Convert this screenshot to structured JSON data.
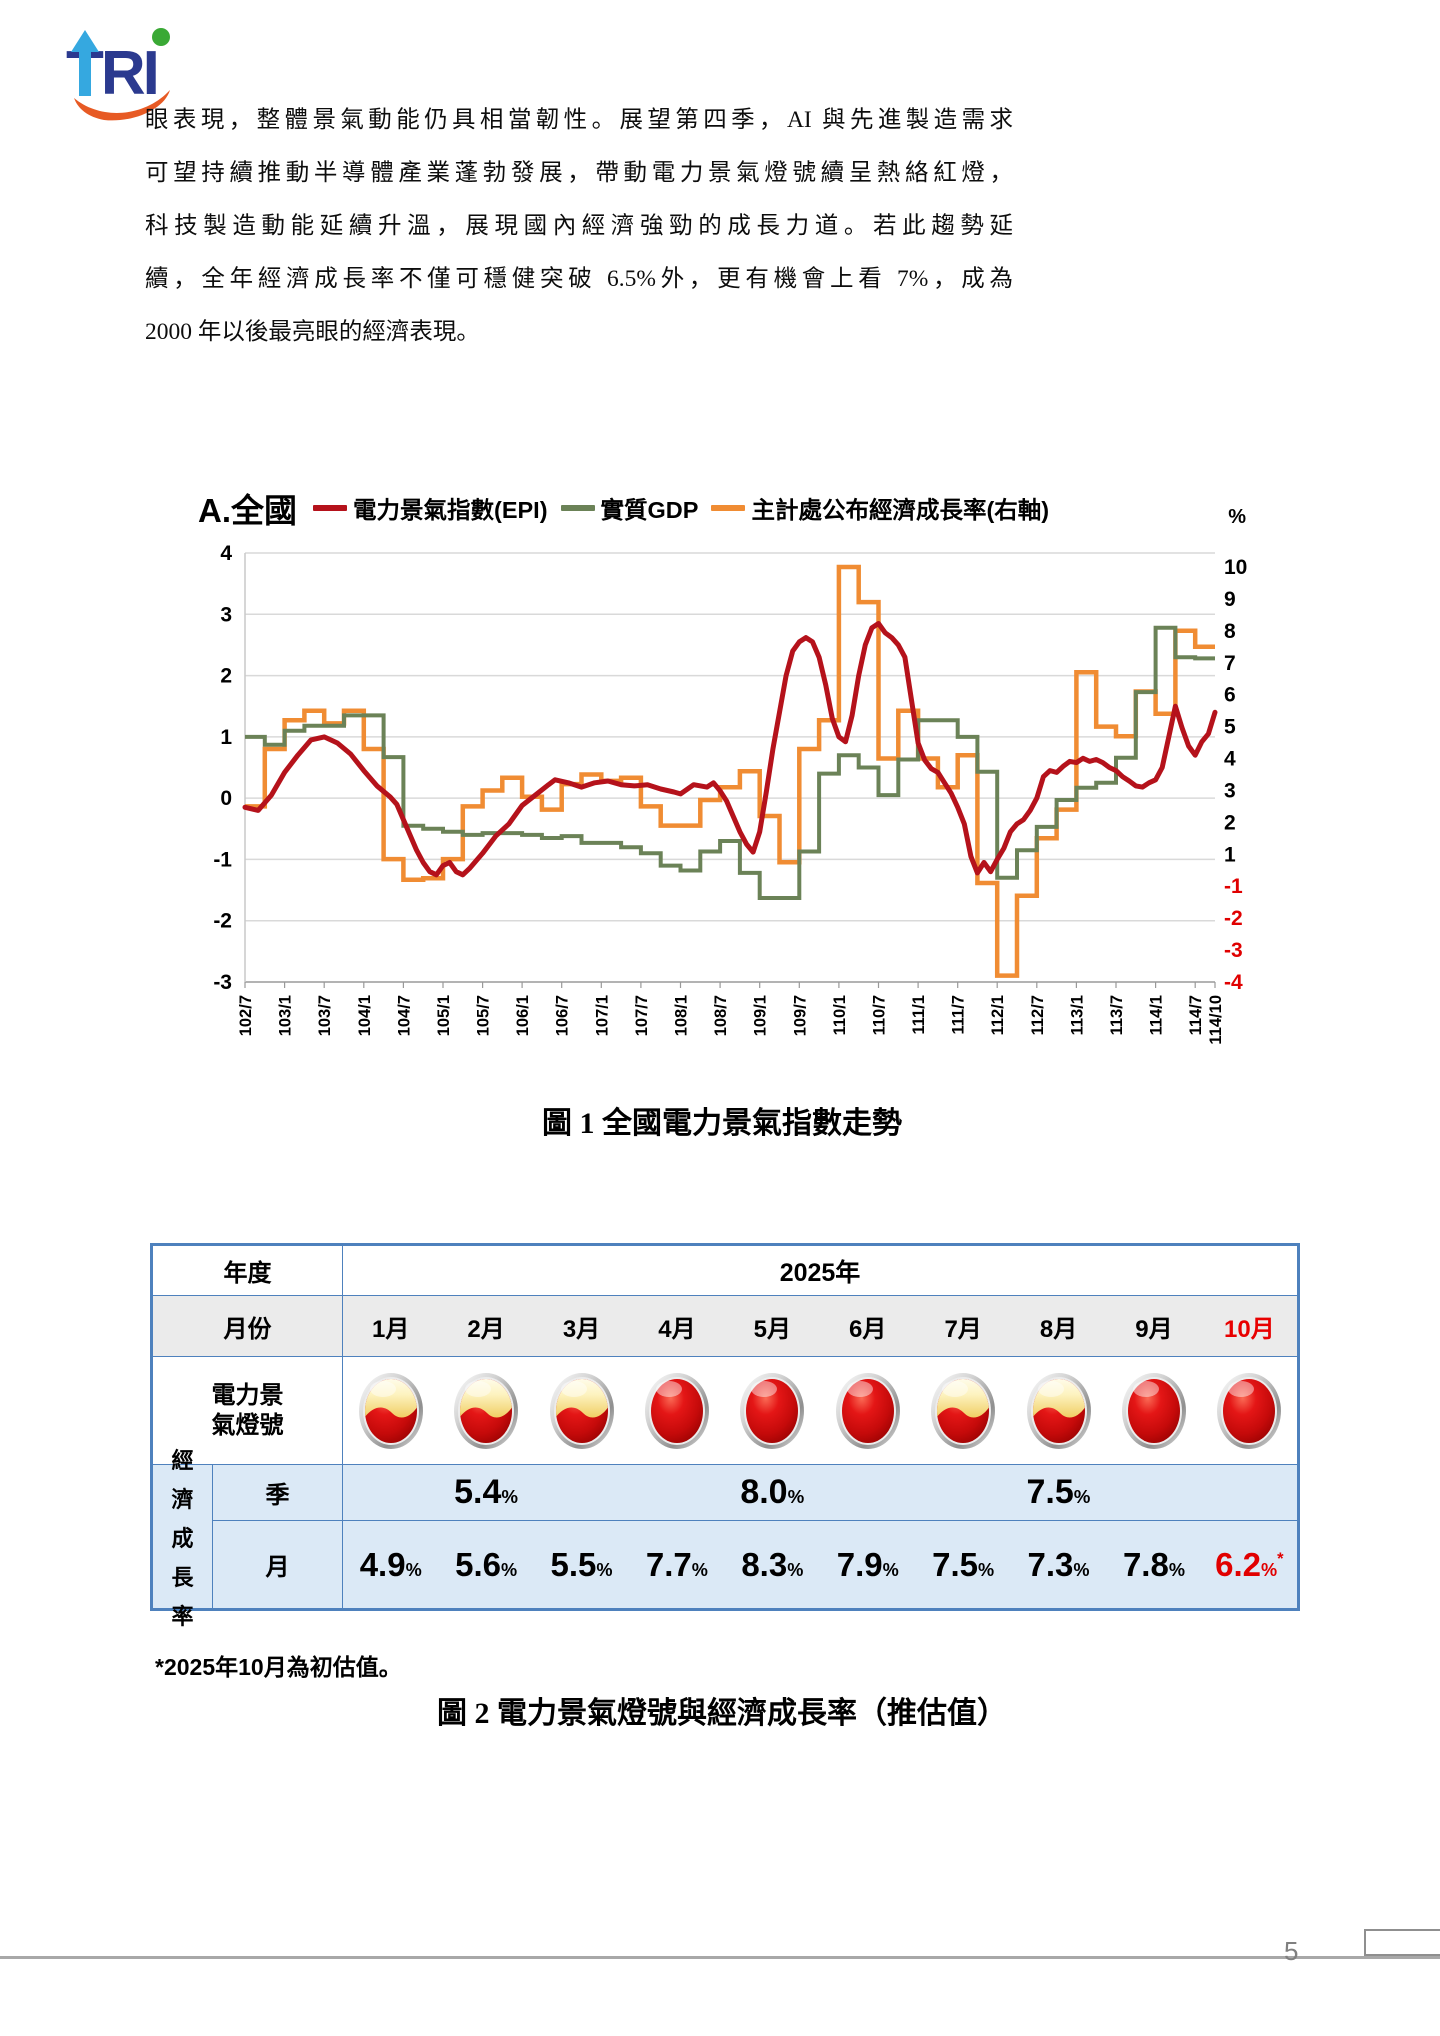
{
  "page": {
    "number": "5"
  },
  "logo": {
    "text": "TRI"
  },
  "paragraph": {
    "lines": [
      "眼表現，整體景氣動能仍具相當韌性。展望第四季，AI 與先進製造需求",
      "可望持續推動半導體產業蓬勃發展，帶動電力景氣燈號續呈熱絡紅燈，",
      "科技製造動能延續升溫，展現國內經濟強勁的成長力道。若此趨勢延",
      "續，全年經濟成長率不僅可穩健突破 6.5%外，更有機會上看 7%，成為",
      "2000 年以後最亮眼的經濟表現。"
    ]
  },
  "figure1": {
    "section_label": "A.全國",
    "legend": [
      {
        "label": "電力景氣指數(EPI)",
        "color": "#b5121b"
      },
      {
        "label": "實質GDP",
        "color": "#6b8257"
      },
      {
        "label": "主計處公布經濟成長率(右軸)",
        "color": "#f08c33"
      }
    ],
    "right_axis_unit": "%",
    "caption": "圖 1  全國電力景氣指數走勢",
    "chart_data": {
      "type": "line",
      "title": "A.全國 電力景氣指數走勢",
      "x_start": "102/7",
      "x_end": "114/10",
      "x_tick_labels": [
        "102/7",
        "103/1",
        "103/7",
        "104/1",
        "104/7",
        "105/1",
        "105/7",
        "106/1",
        "106/7",
        "107/1",
        "107/7",
        "108/1",
        "108/7",
        "109/1",
        "109/7",
        "110/1",
        "110/7",
        "111/1",
        "111/7",
        "112/1",
        "112/7",
        "113/1",
        "113/7",
        "114/1",
        "114/7",
        "114/10"
      ],
      "x_tick_months": [
        0,
        6,
        12,
        18,
        24,
        30,
        36,
        42,
        48,
        54,
        60,
        66,
        72,
        78,
        84,
        90,
        96,
        102,
        108,
        114,
        120,
        126,
        132,
        138,
        144,
        147
      ],
      "left_axis": {
        "min": -3,
        "max": 4,
        "ticks": [
          4,
          3,
          2,
          1,
          0,
          -1,
          -2,
          -3
        ]
      },
      "right_axis": {
        "unit": "%",
        "ticks": [
          10,
          9,
          8,
          7,
          6,
          5,
          4,
          3,
          2,
          1,
          -1,
          -2,
          -3,
          -4
        ],
        "negative_color": "#e00000"
      },
      "grid": true,
      "legend_position": "top",
      "series": [
        {
          "name": "電力景氣指數(EPI)",
          "axis": "left",
          "color": "#b5121b",
          "kind": "monthly",
          "points": [
            [
              0,
              -0.15
            ],
            [
              2,
              -0.2
            ],
            [
              4,
              0.05
            ],
            [
              6,
              0.42
            ],
            [
              8,
              0.7
            ],
            [
              10,
              0.95
            ],
            [
              12,
              1.0
            ],
            [
              14,
              0.9
            ],
            [
              16,
              0.72
            ],
            [
              18,
              0.45
            ],
            [
              20,
              0.2
            ],
            [
              22,
              0.02
            ],
            [
              23,
              -0.1
            ],
            [
              24,
              -0.35
            ],
            [
              26,
              -0.85
            ],
            [
              27,
              -1.05
            ],
            [
              28,
              -1.2
            ],
            [
              29,
              -1.25
            ],
            [
              30,
              -1.1
            ],
            [
              31,
              -1.05
            ],
            [
              32,
              -1.2
            ],
            [
              33,
              -1.25
            ],
            [
              34,
              -1.15
            ],
            [
              36,
              -0.9
            ],
            [
              38,
              -0.62
            ],
            [
              40,
              -0.42
            ],
            [
              42,
              -0.12
            ],
            [
              44,
              0.05
            ],
            [
              46,
              0.22
            ],
            [
              47,
              0.3
            ],
            [
              49,
              0.25
            ],
            [
              51,
              0.18
            ],
            [
              53,
              0.25
            ],
            [
              55,
              0.28
            ],
            [
              57,
              0.22
            ],
            [
              59,
              0.2
            ],
            [
              61,
              0.22
            ],
            [
              63,
              0.15
            ],
            [
              65,
              0.1
            ],
            [
              66,
              0.07
            ],
            [
              68,
              0.22
            ],
            [
              70,
              0.18
            ],
            [
              71,
              0.25
            ],
            [
              72,
              0.12
            ],
            [
              73,
              -0.05
            ],
            [
              74,
              -0.3
            ],
            [
              75,
              -0.55
            ],
            [
              76,
              -0.75
            ],
            [
              77,
              -0.88
            ],
            [
              78,
              -0.55
            ],
            [
              79,
              0.1
            ],
            [
              80,
              0.8
            ],
            [
              81,
              1.4
            ],
            [
              82,
              2.0
            ],
            [
              83,
              2.4
            ],
            [
              84,
              2.55
            ],
            [
              85,
              2.62
            ],
            [
              86,
              2.55
            ],
            [
              87,
              2.3
            ],
            [
              88,
              1.85
            ],
            [
              89,
              1.3
            ],
            [
              90,
              1.0
            ],
            [
              91,
              0.92
            ],
            [
              92,
              1.35
            ],
            [
              93,
              2.0
            ],
            [
              94,
              2.5
            ],
            [
              95,
              2.78
            ],
            [
              96,
              2.85
            ],
            [
              97,
              2.7
            ],
            [
              98,
              2.62
            ],
            [
              99,
              2.5
            ],
            [
              100,
              2.3
            ],
            [
              101,
              1.6
            ],
            [
              102,
              0.9
            ],
            [
              103,
              0.62
            ],
            [
              104,
              0.48
            ],
            [
              105,
              0.42
            ],
            [
              106,
              0.25
            ],
            [
              107,
              0.08
            ],
            [
              108,
              -0.15
            ],
            [
              109,
              -0.42
            ],
            [
              110,
              -0.95
            ],
            [
              111,
              -1.22
            ],
            [
              112,
              -1.05
            ],
            [
              113,
              -1.2
            ],
            [
              114,
              -1.0
            ],
            [
              115,
              -0.82
            ],
            [
              116,
              -0.55
            ],
            [
              117,
              -0.42
            ],
            [
              118,
              -0.35
            ],
            [
              119,
              -0.2
            ],
            [
              120,
              0.0
            ],
            [
              121,
              0.35
            ],
            [
              122,
              0.45
            ],
            [
              123,
              0.42
            ],
            [
              124,
              0.52
            ],
            [
              125,
              0.6
            ],
            [
              126,
              0.58
            ],
            [
              127,
              0.65
            ],
            [
              128,
              0.6
            ],
            [
              129,
              0.63
            ],
            [
              130,
              0.58
            ],
            [
              131,
              0.5
            ],
            [
              132,
              0.45
            ],
            [
              133,
              0.35
            ],
            [
              134,
              0.28
            ],
            [
              135,
              0.2
            ],
            [
              136,
              0.18
            ],
            [
              137,
              0.25
            ],
            [
              138,
              0.3
            ],
            [
              139,
              0.5
            ],
            [
              140,
              1.0
            ],
            [
              141,
              1.5
            ],
            [
              142,
              1.15
            ],
            [
              143,
              0.85
            ],
            [
              144,
              0.7
            ],
            [
              145,
              0.92
            ],
            [
              146,
              1.05
            ],
            [
              147,
              1.4
            ]
          ]
        },
        {
          "name": "實質GDP",
          "axis": "left",
          "color": "#6b8257",
          "kind": "quarterly_step",
          "first_quarter": "102Q3",
          "quarter_values": [
            1.0,
            0.87,
            1.1,
            1.18,
            1.18,
            1.35,
            1.35,
            0.67,
            -0.45,
            -0.5,
            -0.55,
            -0.6,
            -0.57,
            -0.57,
            -0.6,
            -0.65,
            -0.62,
            -0.73,
            -0.73,
            -0.8,
            -0.9,
            -1.1,
            -1.18,
            -0.87,
            -0.7,
            -1.22,
            -1.63,
            -1.63,
            -0.87,
            0.4,
            0.7,
            0.5,
            0.05,
            0.63,
            1.27,
            1.27,
            1.0,
            0.43,
            -1.3,
            -0.85,
            -0.47,
            -0.03,
            0.17,
            0.25,
            0.66,
            1.73,
            2.78,
            2.3,
            2.28
          ]
        },
        {
          "name": "主計處公布經濟成長率(右軸)",
          "axis": "right",
          "color": "#f08c33",
          "kind": "quarterly_step",
          "first_quarter": "102Q3",
          "quarter_values": [
            2.5,
            4.3,
            5.2,
            5.5,
            5.1,
            5.5,
            4.3,
            0.7,
            -0.6,
            -0.5,
            0.7,
            2.5,
            3.0,
            3.4,
            2.8,
            2.4,
            3.2,
            3.5,
            3.3,
            3.4,
            2.5,
            1.9,
            1.9,
            2.7,
            3.1,
            3.6,
            2.2,
            0.5,
            4.3,
            5.2,
            10.0,
            8.9,
            4.0,
            5.5,
            4.0,
            3.1,
            4.1,
            -0.8,
            -3.8,
            -1.3,
            1.5,
            2.4,
            6.7,
            5.0,
            4.7,
            6.1,
            5.4,
            8.0,
            7.5
          ]
        }
      ]
    }
  },
  "figure2": {
    "year_label": "年度",
    "year": "2025年",
    "month_label": "月份",
    "months": [
      "1月",
      "2月",
      "3月",
      "4月",
      "5月",
      "6月",
      "7月",
      "8月",
      "9月",
      "10月"
    ],
    "month_highlight_index": 9,
    "lights_label_lines": [
      "電力景",
      "氣燈號"
    ],
    "lights": [
      "yellow-red",
      "yellow-red",
      "yellow-red",
      "red",
      "red",
      "red",
      "yellow-red",
      "yellow-red",
      "red",
      "red"
    ],
    "growth_label_chars": [
      "經",
      "濟",
      "成",
      "長",
      "率"
    ],
    "quarter_row_label": "季",
    "month_row_label": "月",
    "percent_suffix": "%",
    "quarter_values": [
      {
        "value": "5.4",
        "months": "1月-3月"
      },
      {
        "value": "8.0",
        "months": "4月-6月"
      },
      {
        "value": "7.5",
        "months": "7月-9月"
      }
    ],
    "month_values": [
      "4.9",
      "5.6",
      "5.5",
      "7.7",
      "8.3",
      "7.9",
      "7.5",
      "7.3",
      "7.8",
      "6.2"
    ],
    "estimated_index": 9,
    "estimated_mark": "*",
    "footnote": "*2025年10月為初估值。",
    "caption": "圖 2  電力景氣燈號與經濟成長率（推估值）"
  }
}
